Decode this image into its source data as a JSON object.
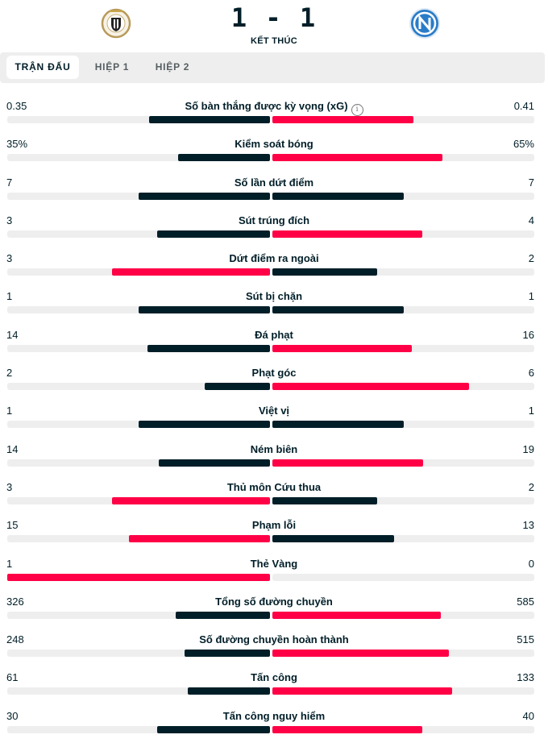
{
  "match": {
    "score": "1 - 1",
    "status": "KẾT THÚC",
    "home_logo_icon": "udinese-crest-icon",
    "away_logo_icon": "napoli-crest-icon"
  },
  "tabs": [
    {
      "label": "TRẬN ĐẤU",
      "active": true
    },
    {
      "label": "HIỆP 1",
      "active": false
    },
    {
      "label": "HIỆP 2",
      "active": false
    }
  ],
  "colors": {
    "winner": "#ff0046",
    "loser": "#001e28",
    "track": "#eeeeee"
  },
  "stats": [
    {
      "label": "Số bàn thắng được kỳ vọng (xG)",
      "home": "0.35",
      "away": "0.41",
      "info": true
    },
    {
      "label": "Kiểm soát bóng",
      "home": "35%",
      "away": "65%"
    },
    {
      "label": "Số lần dứt điểm",
      "home": "7",
      "away": "7"
    },
    {
      "label": "Sút trúng đích",
      "home": "3",
      "away": "4"
    },
    {
      "label": "Dứt điểm ra ngoài",
      "home": "3",
      "away": "2"
    },
    {
      "label": "Sút bị chặn",
      "home": "1",
      "away": "1"
    },
    {
      "label": "Đá phạt",
      "home": "14",
      "away": "16"
    },
    {
      "label": "Phạt góc",
      "home": "2",
      "away": "6"
    },
    {
      "label": "Việt vị",
      "home": "1",
      "away": "1"
    },
    {
      "label": "Ném biên",
      "home": "14",
      "away": "19"
    },
    {
      "label": "Thủ môn Cứu thua",
      "home": "3",
      "away": "2"
    },
    {
      "label": "Phạm lỗi",
      "home": "15",
      "away": "13"
    },
    {
      "label": "Thẻ Vàng",
      "home": "1",
      "away": "0"
    },
    {
      "label": "Tổng số đường chuyền",
      "home": "326",
      "away": "585"
    },
    {
      "label": "Số đường chuyền hoàn thành",
      "home": "248",
      "away": "515"
    },
    {
      "label": "Tấn công",
      "home": "61",
      "away": "133"
    },
    {
      "label": "Tấn công nguy hiểm",
      "home": "30",
      "away": "40"
    }
  ]
}
